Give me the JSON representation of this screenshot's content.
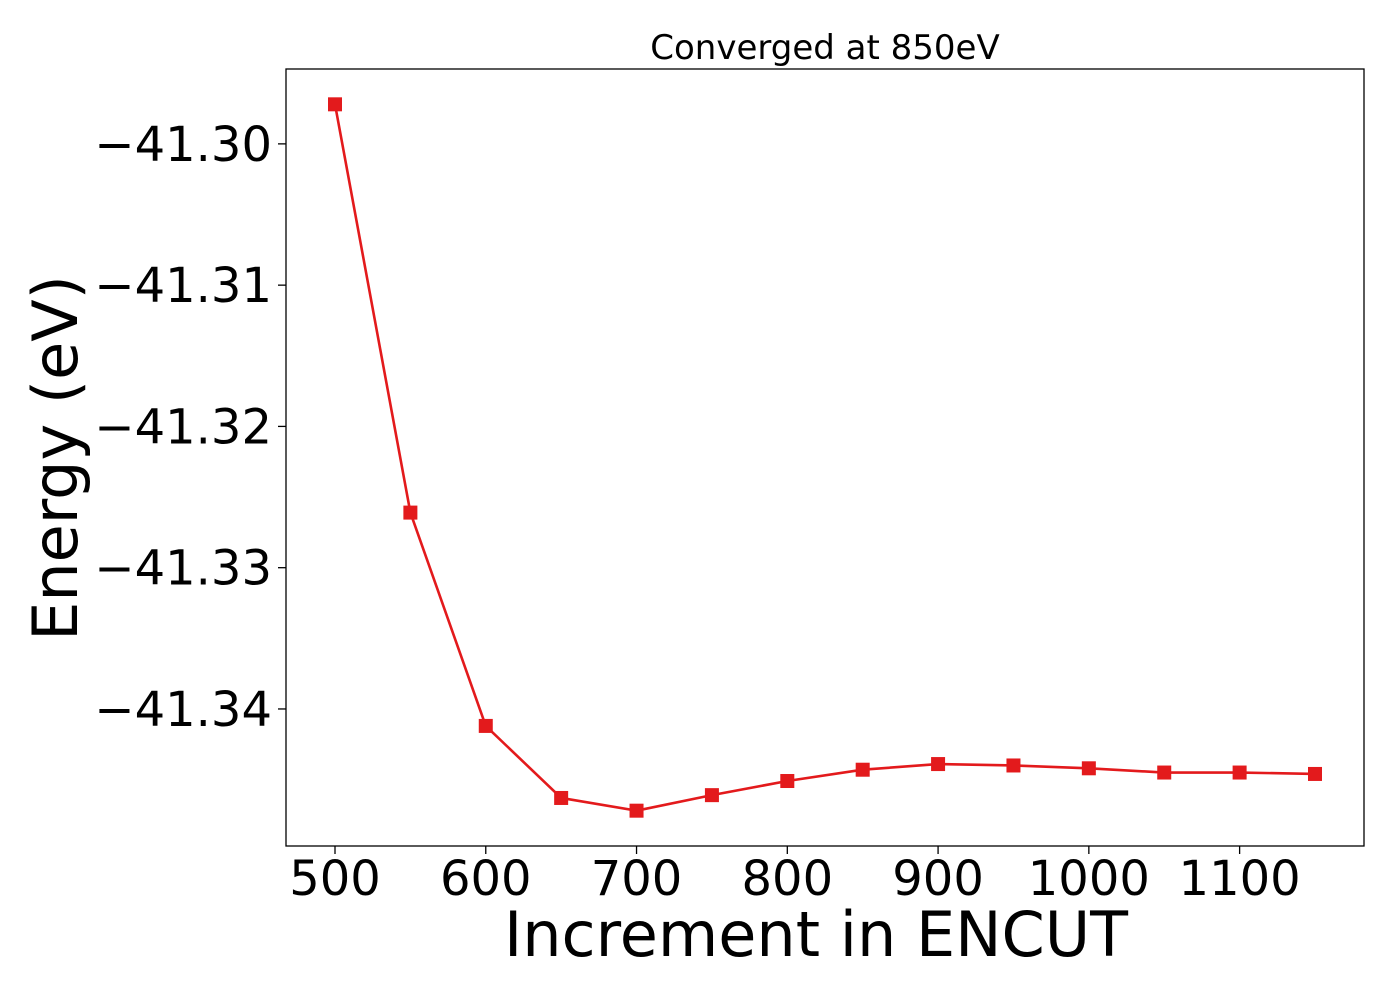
{
  "chart_data": {
    "type": "line",
    "title": "Converged at 850eV",
    "xlabel": "Increment in ENCUT",
    "ylabel": "Energy (eV)",
    "x": [
      500,
      550,
      600,
      650,
      700,
      750,
      800,
      850,
      900,
      950,
      1000,
      1050,
      1100,
      1150
    ],
    "series": [
      {
        "name": "",
        "color": "#e31a1c",
        "marker": "square",
        "values": [
          -41.2972,
          -41.3261,
          -41.3412,
          -41.3463,
          -41.3472,
          -41.3461,
          -41.3451,
          -41.3443,
          -41.3439,
          -41.344,
          -41.3442,
          -41.3445,
          -41.3445,
          -41.3446
        ]
      }
    ],
    "xlim": [
      467.5,
      1182.5
    ],
    "ylim": [
      -41.3497,
      -41.2947
    ],
    "xticks": [
      500,
      600,
      700,
      800,
      900,
      1000,
      1100
    ],
    "xtick_labels": [
      "500",
      "600",
      "700",
      "800",
      "900",
      "1000",
      "1100"
    ],
    "yticks": [
      -41.3,
      -41.31,
      -41.32,
      -41.33,
      -41.34
    ],
    "ytick_labels": [
      "−41.30",
      "−41.31",
      "−41.32",
      "−41.33",
      "−41.34"
    ],
    "grid": false,
    "legend": "none"
  }
}
